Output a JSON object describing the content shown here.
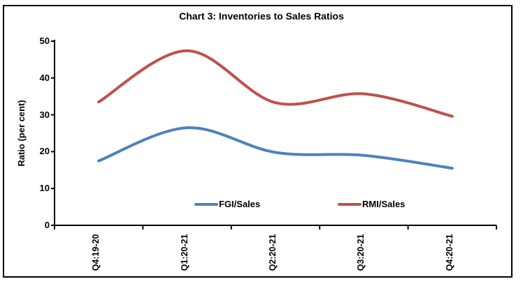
{
  "window": {
    "title": "Chart 3: Inventories to Sales Ratios"
  },
  "chart_data": {
    "type": "line",
    "title": "Chart 3: Inventories to Sales Ratios",
    "categories": [
      "Q4:19-20",
      "Q1:20-21",
      "Q2:20-21",
      "Q3:20-21",
      "Q4:20-21"
    ],
    "series": [
      {
        "name": "FGI/Sales",
        "color": "#4F81BD",
        "values": [
          17.5,
          26.5,
          19.8,
          19.0,
          15.5
        ]
      },
      {
        "name": "RMI/Sales",
        "color": "#C0504D",
        "values": [
          33.5,
          47.4,
          33.3,
          35.7,
          29.6
        ]
      }
    ],
    "xlabel": "",
    "ylabel": "Ratio (per cent)",
    "ylim": [
      0,
      50
    ],
    "yticks": [
      0,
      10,
      20,
      30,
      40,
      50
    ],
    "grid": false,
    "smooth": true,
    "legend_position": "bottom-inside",
    "axis_color": "#000000",
    "background": "#FFFFFF"
  }
}
